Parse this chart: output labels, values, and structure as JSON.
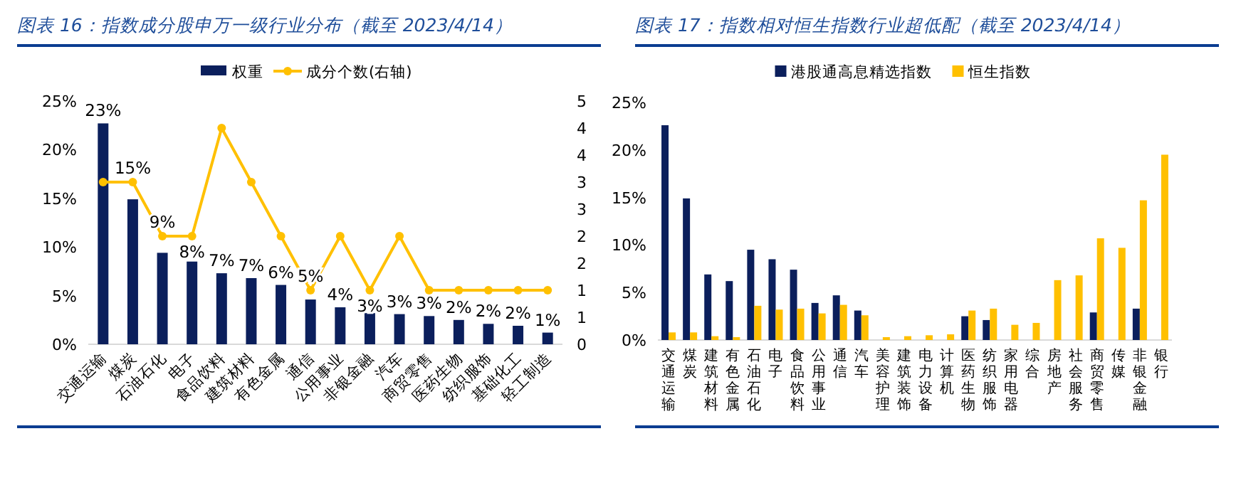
{
  "chart_data": [
    {
      "type": "bar",
      "title": "图表 16：指数成分股申万一级行业分布（截至 2023/4/14）",
      "categories": [
        "交通运输",
        "煤炭",
        "石油石化",
        "电子",
        "食品饮料",
        "建筑材料",
        "有色金属",
        "通信",
        "公用事业",
        "非银金融",
        "汽车",
        "商贸零售",
        "医药生物",
        "纺织服饰",
        "基础化工",
        "轻工制造"
      ],
      "series": [
        {
          "name": "权重",
          "type": "bar",
          "color": "#0b1f5c",
          "values": [
            22.7,
            14.9,
            9.4,
            8.5,
            7.3,
            6.8,
            6.1,
            4.6,
            3.8,
            3.2,
            3.1,
            2.9,
            2.5,
            2.1,
            1.9,
            1.2
          ],
          "value_labels": [
            "23%",
            "15%",
            "9%",
            "8%",
            "7%",
            "7%",
            "6%",
            "5%",
            "4%",
            "3%",
            "3%",
            "3%",
            "2%",
            "2%",
            "2%",
            "1%"
          ]
        },
        {
          "name": "成分个数(右轴)",
          "type": "line",
          "axis": "y2",
          "color": "#ffc000",
          "marker": "circle",
          "values": [
            3,
            3,
            2,
            2,
            4,
            3,
            2,
            1,
            2,
            1,
            2,
            1,
            1,
            1,
            1,
            1
          ]
        }
      ],
      "ylim": [
        0,
        25
      ],
      "yticks": [
        {
          "value": 0,
          "label": "0%"
        },
        {
          "value": 5,
          "label": "5%"
        },
        {
          "value": 10,
          "label": "10%"
        },
        {
          "value": 15,
          "label": "15%"
        },
        {
          "value": 20,
          "label": "20%"
        },
        {
          "value": 25,
          "label": "25%"
        }
      ],
      "y2lim": [
        0,
        4.5
      ],
      "y2ticks": [
        0,
        {
          "value": 0.5,
          "label": "1"
        },
        1,
        {
          "value": 1.5,
          "label": "2"
        },
        2,
        {
          "value": 2.5,
          "label": "3"
        },
        3,
        {
          "value": 3.5,
          "label": "4"
        },
        4,
        {
          "value": 4.5,
          "label": "5"
        }
      ],
      "legend": "top",
      "grid": false
    },
    {
      "type": "bar",
      "title": "图表 17：指数相对恒生指数行业超低配（截至 2023/4/14）",
      "categories": [
        "交通运输",
        "煤炭",
        "建筑材料",
        "有色金属",
        "石油石化",
        "电子",
        "食品饮料",
        "公用事业",
        "通信",
        "汽车",
        "美容护理",
        "建筑装饰",
        "电力设备",
        "计算机",
        "医药生物",
        "纺织服饰",
        "家用电器",
        "综合",
        "房地产",
        "社会服务",
        "商贸零售",
        "传媒",
        "非银金融",
        "银行"
      ],
      "series": [
        {
          "name": "港股通高息精选指数",
          "color": "#0b1f5c",
          "values": [
            22.6,
            14.9,
            6.9,
            6.2,
            9.5,
            8.5,
            7.4,
            3.9,
            4.7,
            3.1,
            null,
            null,
            null,
            null,
            2.5,
            2.1,
            null,
            null,
            null,
            null,
            2.9,
            null,
            3.3,
            null
          ]
        },
        {
          "name": "恒生指数",
          "color": "#ffc000",
          "values": [
            0.8,
            0.8,
            0.4,
            0.3,
            3.6,
            3.2,
            3.3,
            2.8,
            3.7,
            2.6,
            0.3,
            0.4,
            0.5,
            0.6,
            3.1,
            3.3,
            1.6,
            1.8,
            6.3,
            6.8,
            10.7,
            9.7,
            14.7,
            19.5
          ]
        }
      ],
      "ylim": [
        0,
        25
      ],
      "yticks": [
        {
          "value": 0,
          "label": "0%"
        },
        {
          "value": 5,
          "label": "5%"
        },
        {
          "value": 10,
          "label": "10%"
        },
        {
          "value": 15,
          "label": "15%"
        },
        {
          "value": 20,
          "label": "20%"
        },
        {
          "value": 25,
          "label": "25%"
        }
      ],
      "legend": "top",
      "grid": false
    }
  ]
}
